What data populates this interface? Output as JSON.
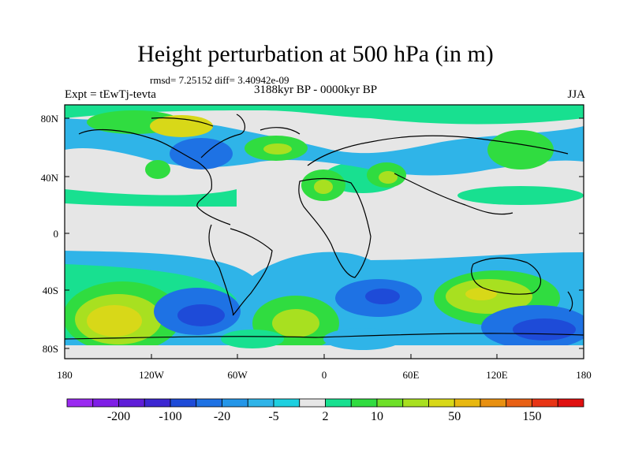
{
  "title": "Height perturbation at 500 hPa (in m)",
  "stats": "rmsd= 7.25152 diff= 3.40942e-09",
  "experiment": "Expt = tEwTj-tevta",
  "period": "3188kyr BP - 0000kyr BP",
  "season": "JJA",
  "lat_labels": [
    "80N",
    "40N",
    "0",
    "40S",
    "80S"
  ],
  "lon_labels": [
    "180",
    "120W",
    "60W",
    "0",
    "60E",
    "120E",
    "180"
  ],
  "colorbar": {
    "colors": [
      "#9a2af0",
      "#7f1ee6",
      "#5f1ed8",
      "#3c27d2",
      "#1e4bd8",
      "#1e72e4",
      "#2496e8",
      "#2fb4e8",
      "#1ed0e0",
      "#e6e6e6",
      "#18e090",
      "#30dc40",
      "#6ee028",
      "#a8e020",
      "#d8d818",
      "#e8b810",
      "#e89010",
      "#e86014",
      "#e83414",
      "#e01010"
    ],
    "labels": [
      "-200",
      "-100",
      "-20",
      "-5",
      "2",
      "10",
      "50",
      "150"
    ]
  }
}
